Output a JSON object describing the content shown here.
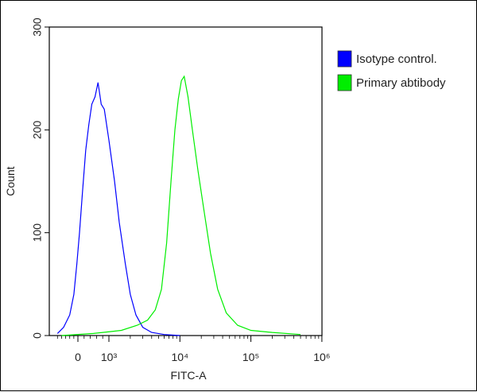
{
  "chart_data": {
    "type": "line",
    "title": "",
    "xlabel": "FITC-A",
    "ylabel": "Count",
    "ylim": [
      0,
      300
    ],
    "yticks": [
      {
        "value": 0,
        "label": "0"
      },
      {
        "value": 100,
        "label": "100"
      },
      {
        "value": 200,
        "label": "200"
      },
      {
        "value": 300,
        "label": "300"
      }
    ],
    "xticks": [
      {
        "value": 0,
        "label": "0"
      },
      {
        "value": 1000,
        "label": "10³"
      },
      {
        "value": 10000,
        "label": "10⁴"
      },
      {
        "value": 100000,
        "label": "10⁵"
      },
      {
        "value": 1000000,
        "label": "10⁶"
      }
    ],
    "x_scale": "logicle",
    "grid": false,
    "legend_position": "right",
    "series": [
      {
        "name": "Isotype control.",
        "color": "#0000ff",
        "points": [
          [
            -1000,
            2
          ],
          [
            -700,
            8
          ],
          [
            -400,
            20
          ],
          [
            -200,
            40
          ],
          [
            -50,
            70
          ],
          [
            50,
            100
          ],
          [
            150,
            140
          ],
          [
            250,
            180
          ],
          [
            350,
            205
          ],
          [
            450,
            225
          ],
          [
            550,
            232
          ],
          [
            650,
            246
          ],
          [
            750,
            225
          ],
          [
            850,
            220
          ],
          [
            1000,
            190
          ],
          [
            1200,
            150
          ],
          [
            1400,
            110
          ],
          [
            1700,
            70
          ],
          [
            2000,
            40
          ],
          [
            2400,
            20
          ],
          [
            3000,
            8
          ],
          [
            4000,
            3
          ],
          [
            6000,
            1
          ],
          [
            10000,
            0
          ]
        ]
      },
      {
        "name": "Primary abtibody",
        "color": "#00ee00",
        "points": [
          [
            -800,
            0
          ],
          [
            500,
            2
          ],
          [
            1500,
            5
          ],
          [
            2500,
            10
          ],
          [
            3500,
            15
          ],
          [
            4500,
            25
          ],
          [
            5500,
            45
          ],
          [
            6500,
            90
          ],
          [
            7500,
            150
          ],
          [
            8500,
            200
          ],
          [
            9500,
            230
          ],
          [
            10500,
            248
          ],
          [
            11500,
            252
          ],
          [
            13000,
            232
          ],
          [
            15000,
            200
          ],
          [
            18000,
            160
          ],
          [
            22000,
            120
          ],
          [
            27000,
            80
          ],
          [
            34000,
            45
          ],
          [
            45000,
            22
          ],
          [
            65000,
            10
          ],
          [
            100000,
            5
          ],
          [
            200000,
            3
          ],
          [
            500000,
            1
          ]
        ]
      }
    ]
  }
}
